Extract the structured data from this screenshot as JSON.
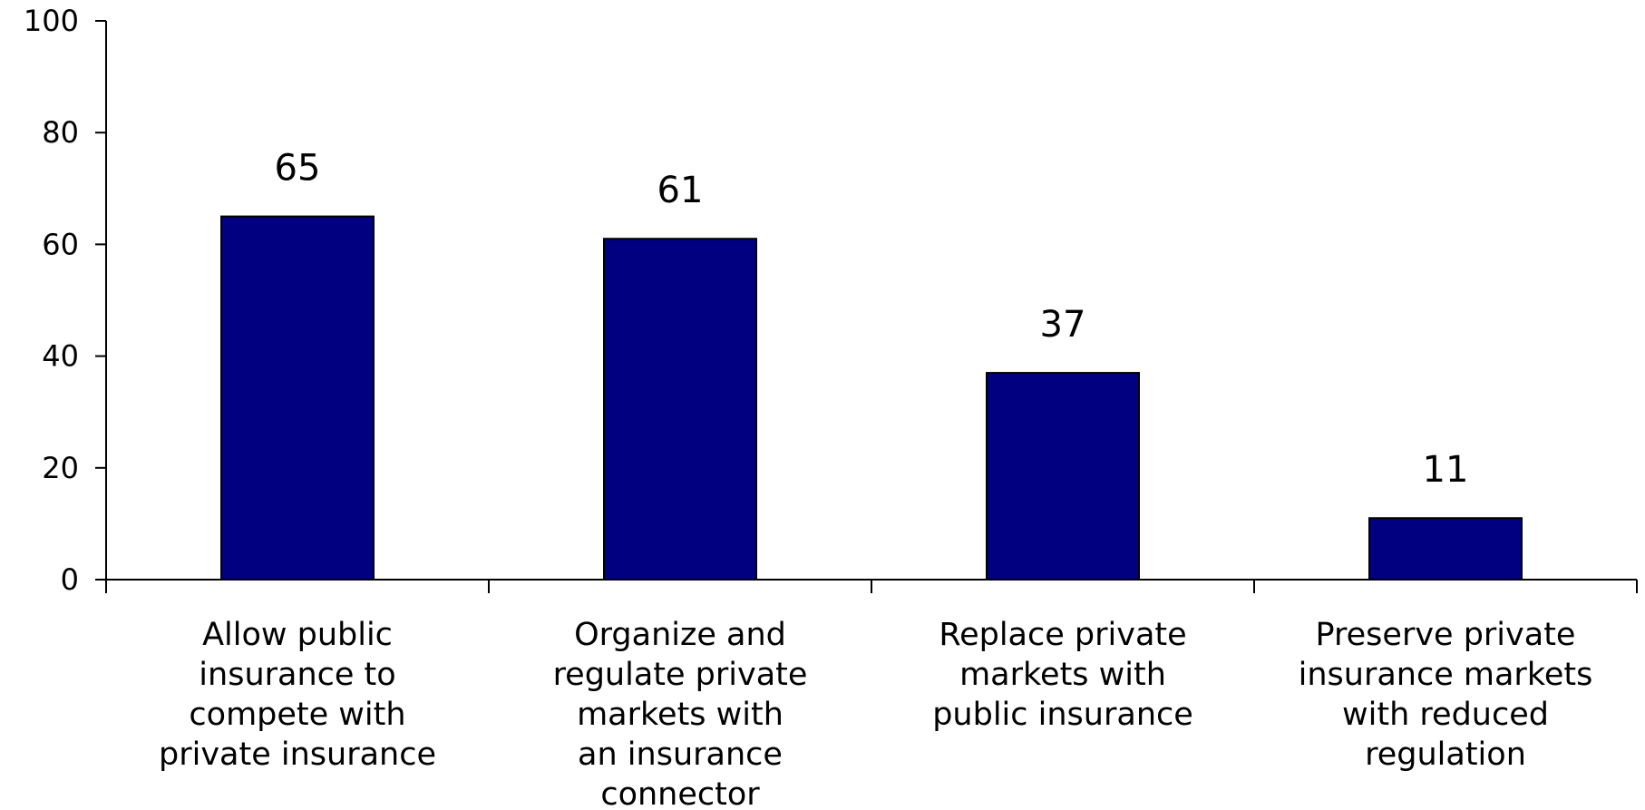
{
  "chart_data": {
    "type": "bar",
    "title": "",
    "xlabel": "",
    "ylabel": "",
    "categories": [
      [
        "Allow public",
        "insurance to",
        "compete with",
        "private insurance"
      ],
      [
        "Organize and",
        "regulate private",
        "markets with",
        "an insurance",
        "connector"
      ],
      [
        "Replace private",
        "markets with",
        "public insurance"
      ],
      [
        "Preserve private",
        "insurance markets",
        "with reduced",
        "regulation"
      ]
    ],
    "values": [
      65,
      61,
      37,
      11
    ],
    "ylim": [
      0,
      100
    ],
    "yticks": [
      0,
      20,
      40,
      60,
      80,
      100
    ],
    "grid": false,
    "legend": "none",
    "bar_color": "#000080"
  }
}
